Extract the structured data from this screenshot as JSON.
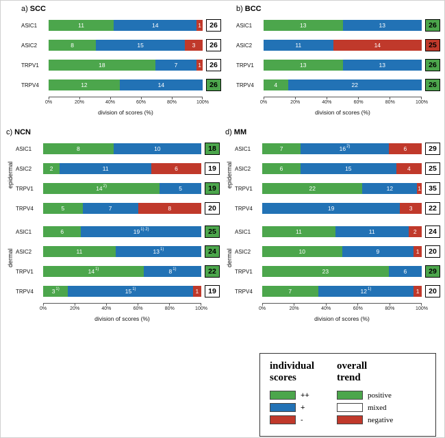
{
  "colors": {
    "green": "#4ca64c",
    "blue": "#2272b5",
    "red": "#c0392b",
    "mixed_fill": "#ffffff"
  },
  "axis": {
    "ticks": [
      "0%",
      "20%",
      "40%",
      "60%",
      "80%",
      "100%"
    ],
    "label": "division of scores (%)",
    "range": [
      0,
      100
    ]
  },
  "legend": {
    "individual_header": "individual scores",
    "overall_header": "overall trend",
    "individual": [
      {
        "color": "green",
        "label": "++"
      },
      {
        "color": "blue",
        "label": "+"
      },
      {
        "color": "red",
        "label": "-"
      }
    ],
    "overall": [
      {
        "trend": "positive",
        "label": "positive"
      },
      {
        "trend": "mixed",
        "label": "mixed"
      },
      {
        "trend": "negative",
        "label": "negative"
      }
    ]
  },
  "chart_data": [
    {
      "id": "a",
      "prefix": "a)",
      "title": "SCC",
      "type": "bar",
      "xlabel": "division of scores (%)",
      "xticks": [
        "0%",
        "20%",
        "40%",
        "60%",
        "80%",
        "100%"
      ],
      "groups": [
        {
          "name": "",
          "rows": [
            {
              "label": "ASIC1",
              "segments": [
                {
                  "color": "green",
                  "value": 11
                },
                {
                  "color": "blue",
                  "value": 14
                },
                {
                  "color": "red",
                  "value": 1
                }
              ],
              "total": 26,
              "trend": "mixed"
            },
            {
              "label": "ASIC2",
              "segments": [
                {
                  "color": "green",
                  "value": 8
                },
                {
                  "color": "blue",
                  "value": 15
                },
                {
                  "color": "red",
                  "value": 3
                }
              ],
              "total": 26,
              "trend": "mixed"
            },
            {
              "label": "TRPV1",
              "segments": [
                {
                  "color": "green",
                  "value": 18
                },
                {
                  "color": "blue",
                  "value": 7
                },
                {
                  "color": "red",
                  "value": 1
                }
              ],
              "total": 26,
              "trend": "mixed"
            },
            {
              "label": "TRPV4",
              "segments": [
                {
                  "color": "green",
                  "value": 12
                },
                {
                  "color": "blue",
                  "value": 14
                }
              ],
              "total": 26,
              "trend": "positive"
            }
          ]
        }
      ]
    },
    {
      "id": "b",
      "prefix": "b)",
      "title": "BCC",
      "type": "bar",
      "xlabel": "division of scores (%)",
      "xticks": [
        "0%",
        "20%",
        "40%",
        "60%",
        "80%",
        "100%"
      ],
      "groups": [
        {
          "name": "",
          "rows": [
            {
              "label": "ASIC1",
              "segments": [
                {
                  "color": "green",
                  "value": 13
                },
                {
                  "color": "blue",
                  "value": 13
                }
              ],
              "total": 26,
              "trend": "positive"
            },
            {
              "label": "ASIC2",
              "segments": [
                {
                  "color": "blue",
                  "value": 11
                },
                {
                  "color": "red",
                  "value": 14
                }
              ],
              "total": 25,
              "trend": "negative"
            },
            {
              "label": "TRPV1",
              "segments": [
                {
                  "color": "green",
                  "value": 13
                },
                {
                  "color": "blue",
                  "value": 13
                }
              ],
              "total": 26,
              "trend": "positive"
            },
            {
              "label": "TRPV4",
              "segments": [
                {
                  "color": "green",
                  "value": 4
                },
                {
                  "color": "blue",
                  "value": 22
                }
              ],
              "total": 26,
              "trend": "positive"
            }
          ]
        }
      ]
    },
    {
      "id": "c",
      "prefix": "c)",
      "title": "NCN",
      "type": "bar",
      "xlabel": "division of scores (%)",
      "xticks": [
        "0%",
        "20%",
        "40%",
        "60%",
        "80%",
        "100%"
      ],
      "groups": [
        {
          "name": "epidermal",
          "rows": [
            {
              "label": "ASIC1",
              "segments": [
                {
                  "color": "green",
                  "value": 8
                },
                {
                  "color": "blue",
                  "value": 10
                }
              ],
              "total": 18,
              "trend": "positive"
            },
            {
              "label": "ASIC2",
              "segments": [
                {
                  "color": "green",
                  "value": 2
                },
                {
                  "color": "blue",
                  "value": 11
                },
                {
                  "color": "red",
                  "value": 6
                }
              ],
              "total": 19,
              "trend": "mixed"
            },
            {
              "label": "TRPV1",
              "segments": [
                {
                  "color": "green",
                  "value": 14,
                  "sup": "2)"
                },
                {
                  "color": "blue",
                  "value": 5
                }
              ],
              "total": 19,
              "trend": "positive"
            },
            {
              "label": "TRPV4",
              "segments": [
                {
                  "color": "green",
                  "value": 5
                },
                {
                  "color": "blue",
                  "value": 7
                },
                {
                  "color": "red",
                  "value": 8
                }
              ],
              "total": 20,
              "trend": "mixed"
            }
          ]
        },
        {
          "name": "dermal",
          "rows": [
            {
              "label": "ASIC1",
              "segments": [
                {
                  "color": "green",
                  "value": 6
                },
                {
                  "color": "blue",
                  "value": 19,
                  "sup": "1) 2)"
                }
              ],
              "total": 25,
              "trend": "positive"
            },
            {
              "label": "ASIC2",
              "segments": [
                {
                  "color": "green",
                  "value": 11
                },
                {
                  "color": "blue",
                  "value": 13,
                  "sup": "1)"
                }
              ],
              "total": 24,
              "trend": "positive"
            },
            {
              "label": "TRPV1",
              "segments": [
                {
                  "color": "green",
                  "value": 14,
                  "sup": "1)"
                },
                {
                  "color": "blue",
                  "value": 8,
                  "sup": "1)"
                }
              ],
              "total": 22,
              "trend": "positive"
            },
            {
              "label": "TRPV4",
              "segments": [
                {
                  "color": "green",
                  "value": 3,
                  "sup": "1)"
                },
                {
                  "color": "blue",
                  "value": 15,
                  "sup": "1)"
                },
                {
                  "color": "red",
                  "value": 1
                }
              ],
              "total": 19,
              "trend": "mixed"
            }
          ]
        }
      ]
    },
    {
      "id": "d",
      "prefix": "d)",
      "title": "MM",
      "type": "bar",
      "xlabel": "division of scores (%)",
      "xticks": [
        "0%",
        "20%",
        "40%",
        "60%",
        "80%",
        "100%"
      ],
      "groups": [
        {
          "name": "epidermal",
          "rows": [
            {
              "label": "ASIC1",
              "segments": [
                {
                  "color": "green",
                  "value": 7
                },
                {
                  "color": "blue",
                  "value": 16,
                  "sup": "2)"
                },
                {
                  "color": "red",
                  "value": 6
                }
              ],
              "total": 29,
              "trend": "mixed"
            },
            {
              "label": "ASIC2",
              "segments": [
                {
                  "color": "green",
                  "value": 6
                },
                {
                  "color": "blue",
                  "value": 15
                },
                {
                  "color": "red",
                  "value": 4
                }
              ],
              "total": 25,
              "trend": "mixed"
            },
            {
              "label": "TRPV1",
              "segments": [
                {
                  "color": "green",
                  "value": 22
                },
                {
                  "color": "blue",
                  "value": 12
                },
                {
                  "color": "red",
                  "value": 1
                }
              ],
              "total": 35,
              "trend": "mixed"
            },
            {
              "label": "TRPV4",
              "segments": [
                {
                  "color": "blue",
                  "value": 19
                },
                {
                  "color": "red",
                  "value": 3
                }
              ],
              "total": 22,
              "trend": "mixed"
            }
          ]
        },
        {
          "name": "dermal",
          "rows": [
            {
              "label": "ASIC1",
              "segments": [
                {
                  "color": "green",
                  "value": 11
                },
                {
                  "color": "blue",
                  "value": 11
                },
                {
                  "color": "red",
                  "value": 2
                }
              ],
              "total": 24,
              "trend": "mixed"
            },
            {
              "label": "ASIC2",
              "segments": [
                {
                  "color": "green",
                  "value": 10
                },
                {
                  "color": "blue",
                  "value": 9
                },
                {
                  "color": "red",
                  "value": 1
                }
              ],
              "total": 20,
              "trend": "mixed"
            },
            {
              "label": "TRPV1",
              "segments": [
                {
                  "color": "green",
                  "value": 23
                },
                {
                  "color": "blue",
                  "value": 6
                }
              ],
              "total": 29,
              "trend": "positive"
            },
            {
              "label": "TRPV4",
              "segments": [
                {
                  "color": "green",
                  "value": 7
                },
                {
                  "color": "blue",
                  "value": 12,
                  "sup": "1)"
                },
                {
                  "color": "red",
                  "value": 1
                }
              ],
              "total": 20,
              "trend": "mixed"
            }
          ]
        }
      ]
    }
  ]
}
